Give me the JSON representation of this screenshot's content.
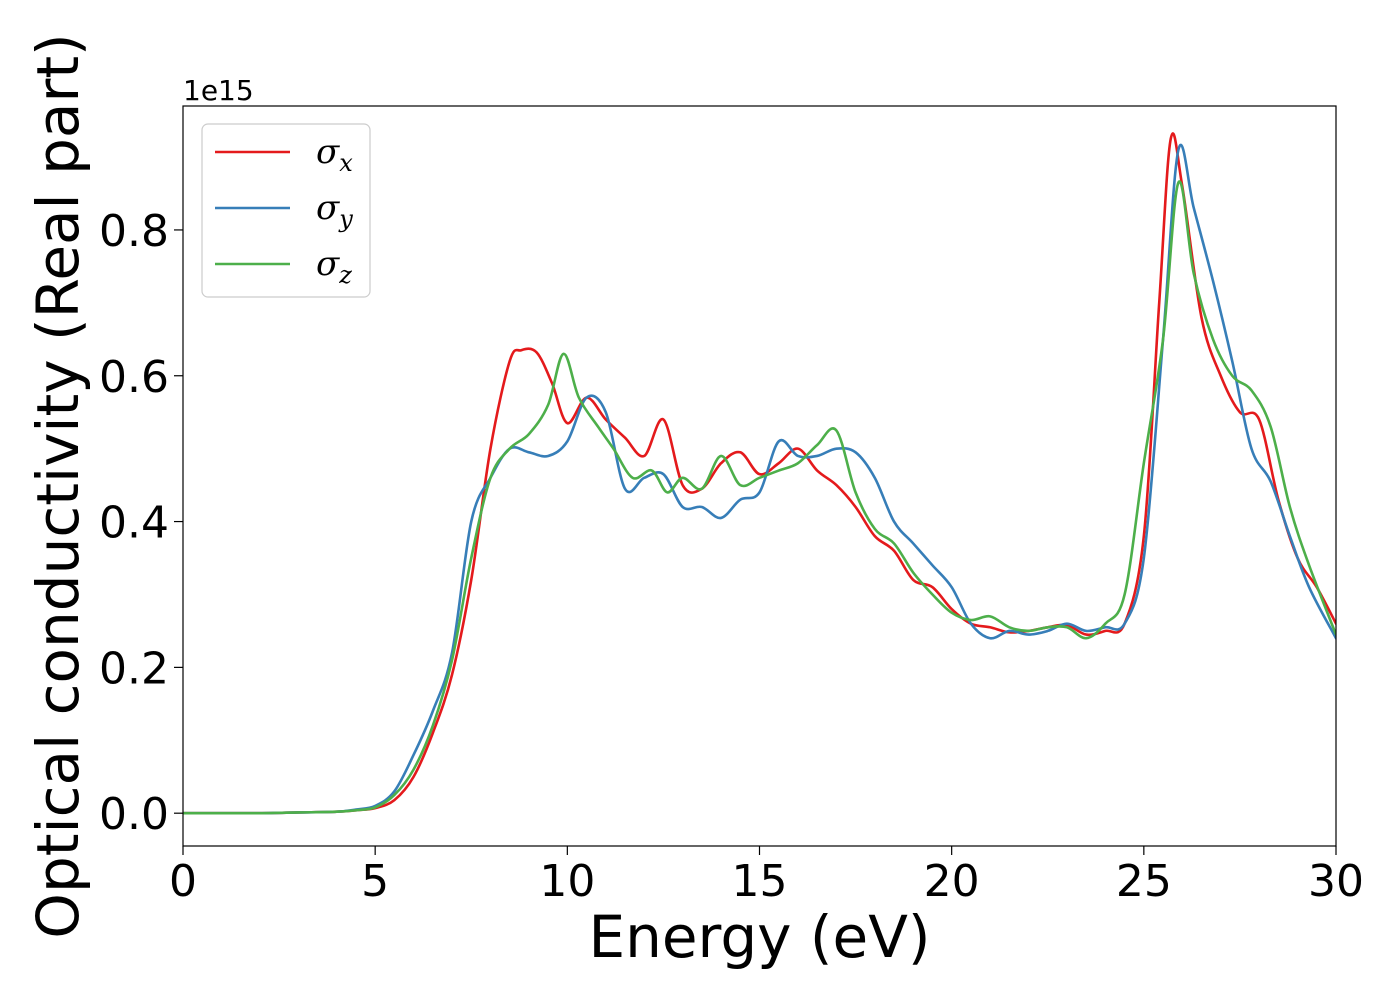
{
  "chart_data": {
    "type": "line",
    "title": "",
    "xlabel": "Energy (eV)",
    "ylabel": "Optical conductivity (Real part)",
    "y_offset_label": "1e15",
    "xlim": [
      0,
      30
    ],
    "ylim": [
      -0.045,
      0.97
    ],
    "x_ticks": [
      0,
      5,
      10,
      15,
      20,
      25,
      30
    ],
    "x_tick_labels": [
      "0",
      "5",
      "10",
      "15",
      "20",
      "25",
      "30"
    ],
    "y_ticks": [
      0.0,
      0.2,
      0.4,
      0.6,
      0.8
    ],
    "y_tick_labels": [
      "0.0",
      "0.2",
      "0.4",
      "0.6",
      "0.8"
    ],
    "grid": false,
    "legend_position": "top-left",
    "series": [
      {
        "name": "σ",
        "subscript": "x",
        "color": "#e41a1c",
        "x": [
          0,
          1,
          2,
          3,
          4,
          4.5,
          5,
          5.5,
          6,
          6.5,
          7,
          7.5,
          8,
          8.5,
          8.8,
          9.2,
          9.6,
          10,
          10.5,
          11,
          11.5,
          12,
          12.5,
          13,
          13.5,
          14,
          14.5,
          15,
          15.5,
          16,
          16.5,
          17,
          17.5,
          18,
          18.5,
          19,
          19.5,
          20,
          20.5,
          21,
          21.5,
          22,
          22.5,
          23,
          23.5,
          24,
          24.5,
          25,
          25.4,
          25.7,
          26,
          26.5,
          27,
          27.5,
          28,
          28.5,
          29,
          29.5,
          30
        ],
        "y": [
          0,
          0,
          0,
          0.001,
          0.002,
          0.004,
          0.007,
          0.018,
          0.05,
          0.11,
          0.19,
          0.32,
          0.5,
          0.62,
          0.635,
          0.632,
          0.59,
          0.535,
          0.57,
          0.54,
          0.515,
          0.49,
          0.54,
          0.45,
          0.445,
          0.48,
          0.495,
          0.465,
          0.48,
          0.5,
          0.47,
          0.45,
          0.42,
          0.38,
          0.36,
          0.32,
          0.31,
          0.28,
          0.26,
          0.255,
          0.248,
          0.25,
          0.255,
          0.258,
          0.245,
          0.25,
          0.26,
          0.38,
          0.7,
          0.925,
          0.86,
          0.68,
          0.6,
          0.55,
          0.54,
          0.43,
          0.35,
          0.31,
          0.26
        ]
      },
      {
        "name": "σ",
        "subscript": "y",
        "color": "#377eb8",
        "x": [
          0,
          1,
          2,
          3,
          4,
          4.5,
          5,
          5.5,
          6,
          6.5,
          7,
          7.5,
          8,
          8.5,
          9,
          9.5,
          10,
          10.5,
          11,
          11.5,
          12,
          12.5,
          13,
          13.5,
          14,
          14.5,
          15,
          15.5,
          16,
          16.5,
          17,
          17.5,
          18,
          18.5,
          19,
          19.5,
          20,
          20.5,
          21,
          21.5,
          22,
          22.5,
          23,
          23.5,
          24,
          24.5,
          25,
          25.5,
          25.9,
          26.3,
          26.8,
          27.3,
          27.8,
          28.3,
          28.8,
          29.3,
          30
        ],
        "y": [
          0,
          0,
          0,
          0.001,
          0.002,
          0.005,
          0.01,
          0.03,
          0.08,
          0.14,
          0.22,
          0.4,
          0.46,
          0.5,
          0.495,
          0.49,
          0.51,
          0.57,
          0.55,
          0.445,
          0.46,
          0.465,
          0.42,
          0.42,
          0.405,
          0.43,
          0.44,
          0.51,
          0.49,
          0.49,
          0.5,
          0.495,
          0.46,
          0.4,
          0.37,
          0.34,
          0.31,
          0.26,
          0.24,
          0.25,
          0.245,
          0.25,
          0.26,
          0.25,
          0.255,
          0.26,
          0.35,
          0.65,
          0.91,
          0.83,
          0.73,
          0.62,
          0.5,
          0.455,
          0.38,
          0.31,
          0.24
        ]
      },
      {
        "name": "σ",
        "subscript": "z",
        "color": "#4daf4a",
        "x": [
          0,
          1,
          2,
          3,
          4,
          4.5,
          5,
          5.5,
          6,
          6.5,
          7,
          7.5,
          8,
          8.5,
          9,
          9.5,
          9.9,
          10.3,
          10.8,
          11.2,
          11.7,
          12.2,
          12.6,
          13,
          13.5,
          14,
          14.5,
          15,
          15.5,
          16,
          16.5,
          17,
          17.5,
          18,
          18.5,
          19,
          19.5,
          20,
          20.5,
          21,
          21.5,
          22,
          22.5,
          23,
          23.5,
          24,
          24.5,
          25,
          25.5,
          25.9,
          26.3,
          26.8,
          27.3,
          27.8,
          28.3,
          28.8,
          29.3,
          30
        ],
        "y": [
          0,
          0,
          0,
          0.001,
          0.002,
          0.004,
          0.008,
          0.025,
          0.06,
          0.12,
          0.21,
          0.35,
          0.46,
          0.5,
          0.52,
          0.56,
          0.63,
          0.57,
          0.53,
          0.5,
          0.46,
          0.47,
          0.44,
          0.46,
          0.445,
          0.49,
          0.45,
          0.46,
          0.47,
          0.48,
          0.505,
          0.525,
          0.44,
          0.39,
          0.37,
          0.33,
          0.3,
          0.275,
          0.265,
          0.27,
          0.255,
          0.25,
          0.255,
          0.255,
          0.24,
          0.26,
          0.3,
          0.48,
          0.65,
          0.865,
          0.74,
          0.65,
          0.6,
          0.58,
          0.53,
          0.42,
          0.34,
          0.245
        ]
      }
    ]
  }
}
